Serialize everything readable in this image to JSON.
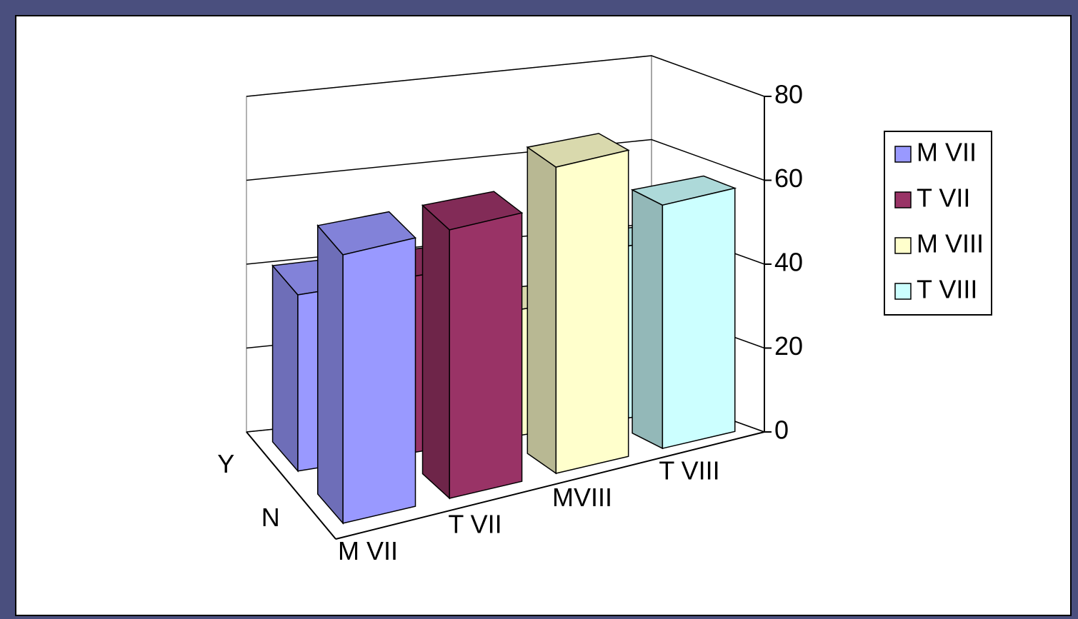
{
  "chart_data": {
    "type": "bar3d",
    "categories": [
      "M VII",
      "T VII",
      "MVIII",
      "T VIII"
    ],
    "colors": [
      "#9999ff",
      "#993366",
      "#ffffcc",
      "#ccffff"
    ],
    "series": [
      {
        "name": "Y",
        "values": [
          42,
          42,
          30,
          41
        ]
      },
      {
        "name": "N",
        "values": [
          64,
          64,
          73,
          58
        ]
      }
    ],
    "legend": [
      "M  VII",
      "T VII",
      "M VIII",
      "T VIII"
    ],
    "ylim": [
      0,
      80
    ],
    "yticks": [
      0,
      20,
      40,
      60,
      80
    ],
    "grid": true
  }
}
